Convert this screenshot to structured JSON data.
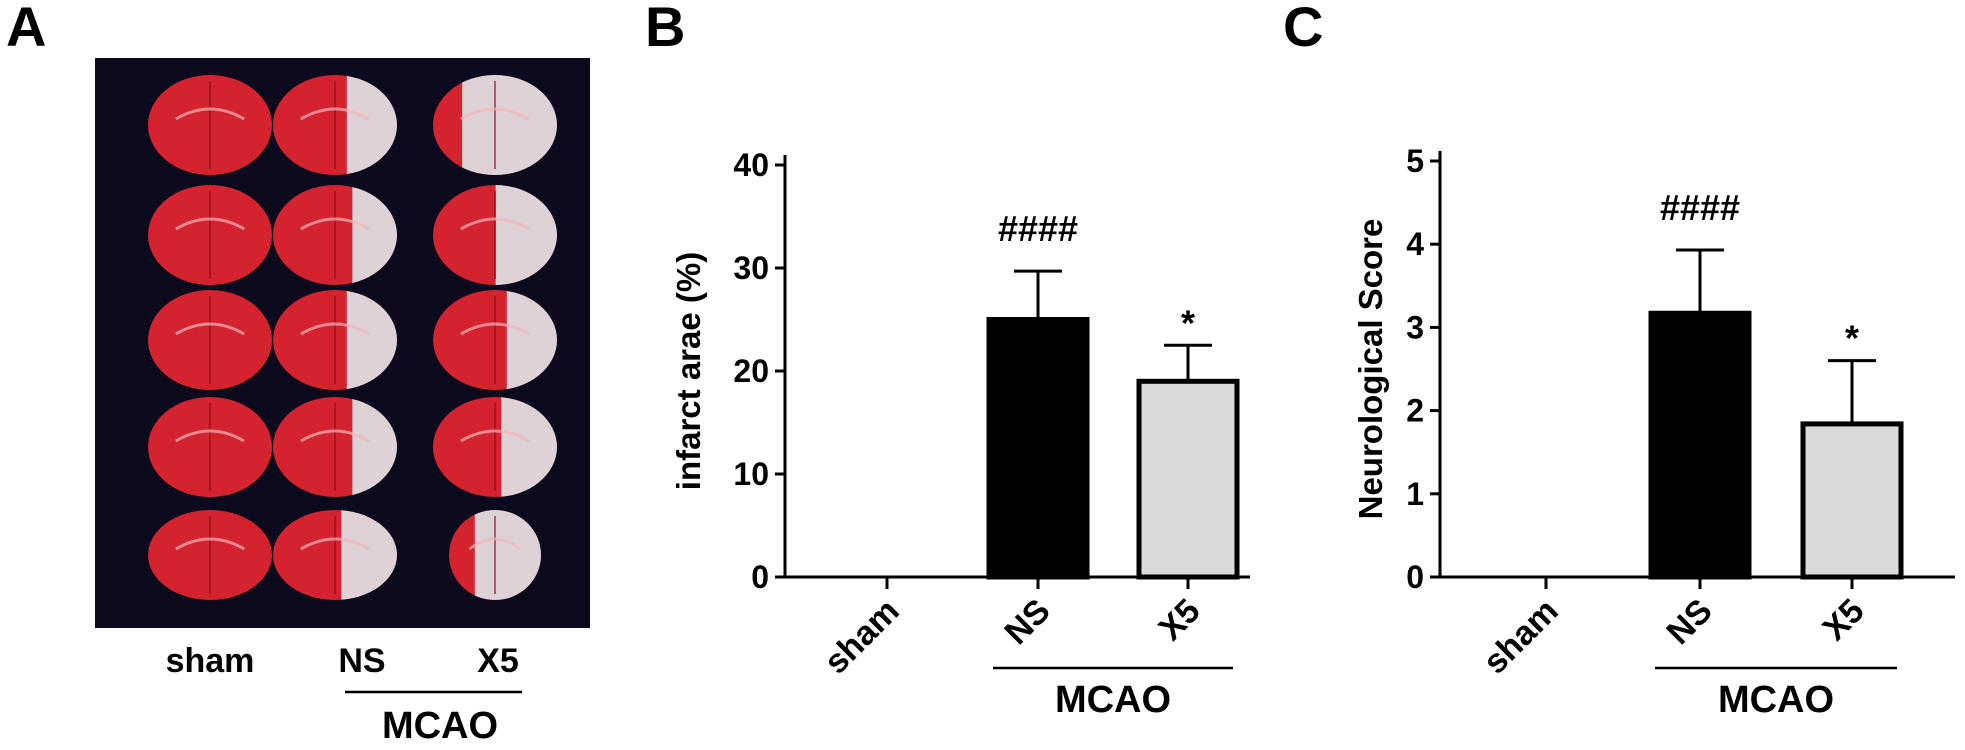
{
  "panels": {
    "a": {
      "letter": "A"
    },
    "b": {
      "letter": "B"
    },
    "c": {
      "letter": "C"
    }
  },
  "photo": {
    "background_color": "#0b0a1c",
    "tissue_color": "#d4222e",
    "infarct_color": "#dfe6ea",
    "columns": [
      "sham",
      "NS",
      "X5"
    ],
    "group_label": "MCAO"
  },
  "colors": {
    "NS_fill": "#000000",
    "X5_fill": "#d9d9d9",
    "sham_fill": "#ffffff",
    "outline": "#000000"
  },
  "chart_data": [
    {
      "type": "bar",
      "panel": "B",
      "categories": [
        "sham",
        "NS",
        "X5"
      ],
      "values": [
        0,
        25,
        19
      ],
      "error_upper": [
        0,
        4.7,
        3.5
      ],
      "annotations": [
        "",
        "####",
        "*"
      ],
      "group_label": "MCAO",
      "group_categories": [
        "NS",
        "X5"
      ],
      "ylabel": "infarct arae (%)",
      "xlabel": "",
      "ylim": [
        0,
        40
      ],
      "yticks": [
        0,
        10,
        20,
        30,
        40
      ],
      "grid": false,
      "legend": "none"
    },
    {
      "type": "bar",
      "panel": "C",
      "categories": [
        "sham",
        "NS",
        "X5"
      ],
      "values": [
        0,
        3.17,
        1.84
      ],
      "error_upper": [
        0,
        0.76,
        0.76
      ],
      "annotations": [
        "",
        "####",
        "*"
      ],
      "group_label": "MCAO",
      "group_categories": [
        "NS",
        "X5"
      ],
      "ylabel": "Neurological Score",
      "xlabel": "",
      "ylim": [
        0,
        5
      ],
      "yticks": [
        0,
        1,
        2,
        3,
        4,
        5
      ],
      "grid": false,
      "legend": "none"
    }
  ]
}
